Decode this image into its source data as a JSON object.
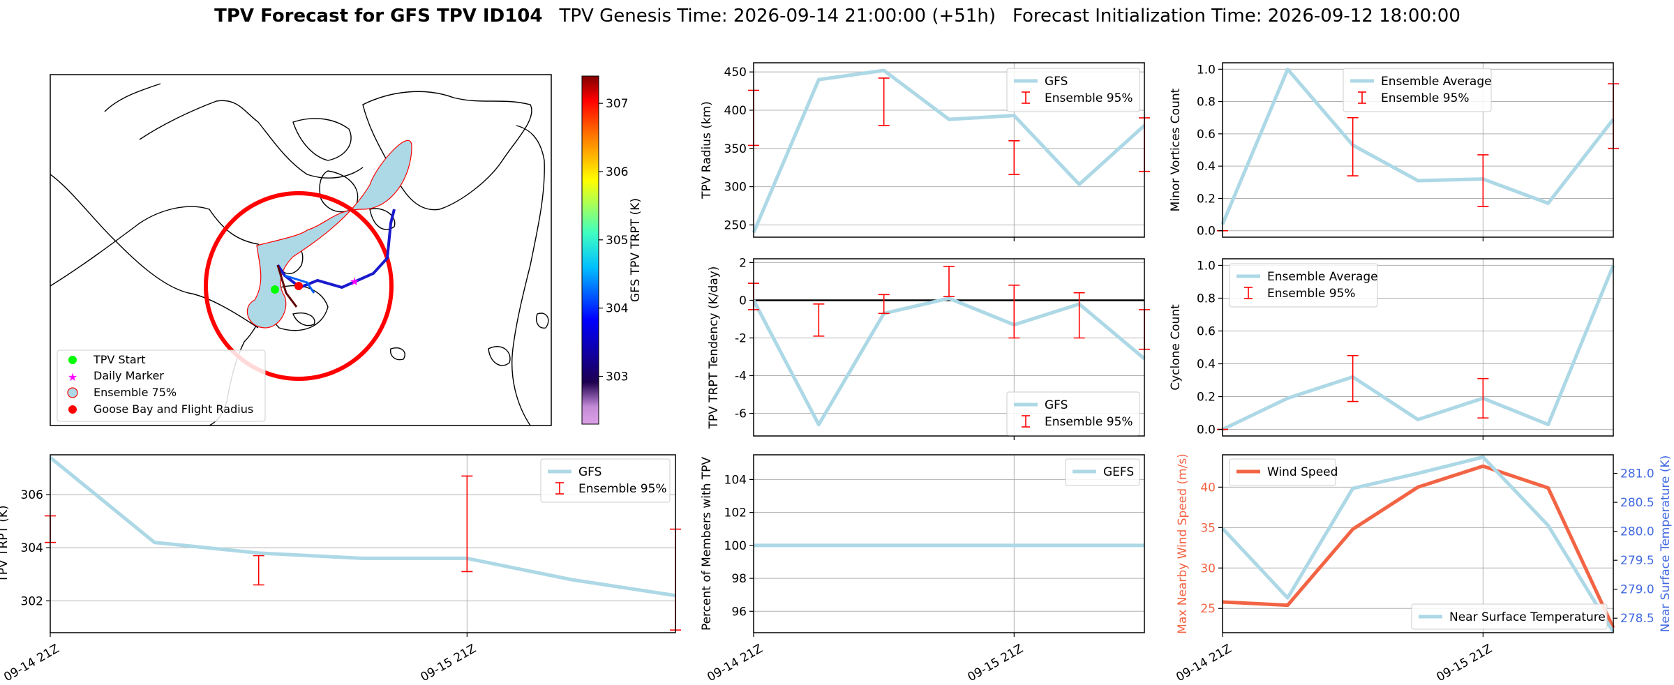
{
  "header": {
    "bold": "TPV Forecast for GFS TPV ID104",
    "genesis": "TPV Genesis Time: 2026-09-14 21:00:00 (+51h)",
    "init": "Forecast Initialization Time: 2026-09-12 18:00:00"
  },
  "colors": {
    "ensemble_line": "#add8e6",
    "error_bar": "#ff0000",
    "wind": "#f26444",
    "temperature_axis": "#4169e1",
    "track_start": "#00ff00",
    "daily_marker": "#ff00ff",
    "goose_bay": "#ff0000"
  },
  "map_panel": {
    "legend": [
      "TPV Start",
      "Daily Marker",
      "Ensemble 75%",
      "Goose Bay and Flight Radius"
    ],
    "colorbar": {
      "label": "GFS TPV TRPT (K)",
      "ticks": [
        303,
        304,
        305,
        306,
        307
      ],
      "range": [
        302.3,
        307.4
      ],
      "colormap": "jet"
    }
  },
  "chart_data": [
    {
      "id": "trpt",
      "type": "line",
      "x_count": 7,
      "xticks": [
        {
          "i": 0,
          "label": "09-14 21Z"
        },
        {
          "i": 4,
          "label": "09-15 21Z"
        }
      ],
      "ylabel": "TPV TRPT (K)",
      "ylim": [
        300.8,
        307.5
      ],
      "yticks": [
        302,
        304,
        306
      ],
      "series": [
        {
          "name": "GFS",
          "values": [
            307.4,
            304.2,
            303.8,
            303.6,
            303.6,
            302.8,
            302.2
          ]
        }
      ],
      "error_bars": {
        "name": "Ensemble 95%",
        "bars": [
          {
            "i": 0,
            "center": 304.7,
            "low": 304.2,
            "high": 305.2
          },
          {
            "i": 2,
            "center": 303.1,
            "low": 302.6,
            "high": 303.7
          },
          {
            "i": 4,
            "center": 304.9,
            "low": 303.1,
            "high": 306.7
          },
          {
            "i": 6,
            "center": 302.8,
            "low": 300.9,
            "high": 304.7
          }
        ]
      },
      "legend": "top-right",
      "grid": true
    },
    {
      "id": "radius",
      "type": "line",
      "x_count": 7,
      "xticks": [
        {
          "i": 4,
          "label": ""
        }
      ],
      "ylabel": "TPV Radius (km)",
      "ylim": [
        234,
        462
      ],
      "yticks": [
        250,
        300,
        350,
        400,
        450
      ],
      "series": [
        {
          "name": "GFS",
          "values": [
            240,
            440,
            452,
            388,
            393,
            303,
            380
          ]
        }
      ],
      "error_bars": {
        "name": "Ensemble 95%",
        "bars": [
          {
            "i": 0,
            "center": 390,
            "low": 354,
            "high": 426
          },
          {
            "i": 2,
            "center": 412,
            "low": 380,
            "high": 442
          },
          {
            "i": 4,
            "center": 338,
            "low": 316,
            "high": 360
          },
          {
            "i": 6,
            "center": 355,
            "low": 320,
            "high": 390
          }
        ]
      },
      "legend": "top-right",
      "grid": true
    },
    {
      "id": "tendency",
      "type": "line",
      "x_count": 7,
      "xticks": [
        {
          "i": 4,
          "label": ""
        }
      ],
      "ylabel": "TPV TRPT Tendency (K/day)",
      "ylim": [
        -7.2,
        2.2
      ],
      "yticks": [
        -6,
        -4,
        -2,
        0,
        2
      ],
      "zero_line": true,
      "series": [
        {
          "name": "GFS",
          "values": [
            0,
            -6.6,
            -0.7,
            0.1,
            -1.3,
            -0.2,
            -3.1
          ]
        }
      ],
      "error_bars": {
        "name": "Ensemble 95%",
        "bars": [
          {
            "i": 0,
            "center": 0.2,
            "low": -0.5,
            "high": 0.9
          },
          {
            "i": 1,
            "center": -1.05,
            "low": -1.9,
            "high": -0.2
          },
          {
            "i": 2,
            "center": -0.2,
            "low": -0.7,
            "high": 0.3
          },
          {
            "i": 3,
            "center": 1.0,
            "low": 0.2,
            "high": 1.8
          },
          {
            "i": 4,
            "center": -0.6,
            "low": -2.0,
            "high": 0.8
          },
          {
            "i": 5,
            "center": -0.8,
            "low": -2.0,
            "high": 0.4
          },
          {
            "i": 6,
            "center": -1.6,
            "low": -2.6,
            "high": -0.5
          }
        ]
      },
      "legend": "bottom-right",
      "grid": true
    },
    {
      "id": "members",
      "type": "line",
      "x_count": 7,
      "xticks": [
        {
          "i": 0,
          "label": "09-14 21Z"
        },
        {
          "i": 4,
          "label": "09-15 21Z"
        }
      ],
      "ylabel": "Percent of Members with TPV",
      "ylim": [
        94.7,
        105.5
      ],
      "yticks": [
        96,
        98,
        100,
        102,
        104
      ],
      "series": [
        {
          "name": "GEFS",
          "values": [
            100,
            100,
            100,
            100,
            100,
            100,
            100
          ]
        }
      ],
      "legend": "top-right",
      "grid": true
    },
    {
      "id": "minor",
      "type": "line",
      "x_count": 7,
      "xticks": [
        {
          "i": 4,
          "label": ""
        }
      ],
      "ylabel": "Minor Vortices Count",
      "ylim": [
        -0.04,
        1.04
      ],
      "yticks": [
        0.0,
        0.2,
        0.4,
        0.6,
        0.8,
        1.0
      ],
      "series": [
        {
          "name": "Ensemble Average",
          "values": [
            0.04,
            1.0,
            0.53,
            0.31,
            0.32,
            0.17,
            0.69
          ]
        }
      ],
      "error_bars": {
        "name": "Ensemble 95%",
        "bars": [
          {
            "i": 0,
            "center": 0.0,
            "low": 0.0,
            "high": 0.0
          },
          {
            "i": 2,
            "center": 0.52,
            "low": 0.34,
            "high": 0.7
          },
          {
            "i": 4,
            "center": 0.31,
            "low": 0.15,
            "high": 0.47
          },
          {
            "i": 6,
            "center": 0.71,
            "low": 0.51,
            "high": 0.91
          }
        ]
      },
      "legend": "top-center",
      "grid": true
    },
    {
      "id": "cyclone",
      "type": "line",
      "x_count": 7,
      "xticks": [
        {
          "i": 4,
          "label": ""
        }
      ],
      "ylabel": "Cyclone Count",
      "ylim": [
        -0.04,
        1.04
      ],
      "yticks": [
        0.0,
        0.2,
        0.4,
        0.6,
        0.8,
        1.0
      ],
      "series": [
        {
          "name": "Ensemble Average",
          "values": [
            0.0,
            0.19,
            0.32,
            0.06,
            0.19,
            0.03,
            1.0
          ]
        }
      ],
      "error_bars": {
        "name": "Ensemble 95%",
        "bars": [
          {
            "i": 0,
            "center": 0.0,
            "low": 0.0,
            "high": 0.0
          },
          {
            "i": 2,
            "center": 0.31,
            "low": 0.17,
            "high": 0.45
          },
          {
            "i": 4,
            "center": 0.19,
            "low": 0.07,
            "high": 0.31
          }
        ]
      },
      "legend": "top-left",
      "grid": true
    },
    {
      "id": "wind",
      "type": "line",
      "x_count": 7,
      "xticks": [
        {
          "i": 0,
          "label": "09-14 21Z"
        },
        {
          "i": 4,
          "label": "09-15 21Z"
        }
      ],
      "ylabel": "Max Nearby Wind Speed (m/s)",
      "ylim": [
        22,
        44
      ],
      "yticks": [
        25,
        30,
        35,
        40
      ],
      "series": [
        {
          "name": "Wind Speed",
          "axis": "left",
          "values": [
            25.8,
            25.4,
            34.8,
            40.0,
            42.6,
            39.9,
            22.6
          ]
        },
        {
          "name": "Near Surface Temperature",
          "axis": "right",
          "values": [
            280.05,
            278.85,
            280.74,
            281.0,
            281.28,
            280.1,
            278.26
          ]
        }
      ],
      "y2label": "Near Surface Temperature (K)",
      "y2lim": [
        278.25,
        281.32
      ],
      "y2ticks": [
        278.5,
        279.0,
        279.5,
        280.0,
        280.5,
        281.0
      ],
      "legend": "top-left and bottom-right",
      "grid": true
    }
  ]
}
